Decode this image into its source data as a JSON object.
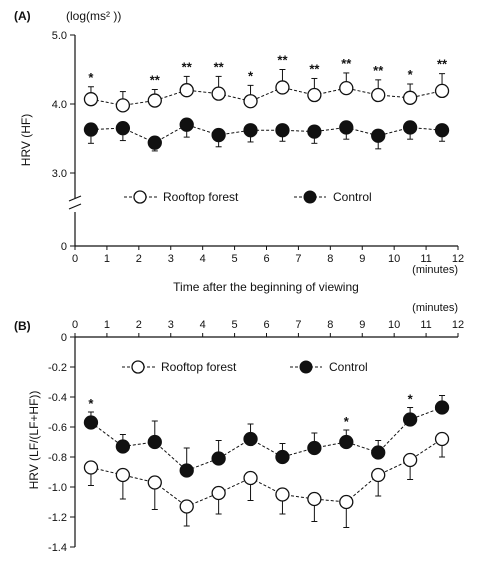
{
  "chart_data": [
    {
      "panel": "(A)",
      "type": "line",
      "unit_label": "(log(ms² ))",
      "ylabel": "HRV (HF)",
      "xlabel": "Time after the beginning of viewing",
      "x_unit": "(minutes)",
      "x_ticks": [
        "0",
        "1",
        "2",
        "3",
        "4",
        "5",
        "6",
        "7",
        "8",
        "9",
        "10",
        "11",
        "12"
      ],
      "y_ticks": [
        "5.0",
        "4.0",
        "3.0",
        "0"
      ],
      "xlim": [
        0,
        12
      ],
      "ylim": [
        3.0,
        5.0
      ],
      "axis_break": true,
      "x": [
        0.5,
        1.5,
        2.5,
        3.5,
        4.5,
        5.5,
        6.5,
        7.5,
        8.5,
        9.5,
        10.5,
        11.5
      ],
      "series": [
        {
          "name": "Rooftop forest",
          "marker": "open-circle",
          "values": [
            4.07,
            3.98,
            4.05,
            4.2,
            4.15,
            4.04,
            4.24,
            4.13,
            4.23,
            4.13,
            4.09,
            4.19
          ],
          "error": [
            0.18,
            0.2,
            0.16,
            0.2,
            0.25,
            0.23,
            0.26,
            0.24,
            0.22,
            0.22,
            0.2,
            0.25
          ]
        },
        {
          "name": "Control",
          "marker": "filled-circle",
          "values": [
            3.63,
            3.65,
            3.44,
            3.7,
            3.55,
            3.62,
            3.62,
            3.6,
            3.66,
            3.54,
            3.66,
            3.62
          ],
          "error": [
            0.2,
            0.18,
            0.12,
            0.18,
            0.17,
            0.17,
            0.16,
            0.17,
            0.17,
            0.19,
            0.17,
            0.16
          ]
        }
      ],
      "significance": [
        "*",
        "",
        "**",
        "**",
        "**",
        "*",
        "**",
        "**",
        "**",
        "**",
        "*",
        "**"
      ],
      "legend_position": "bottom"
    },
    {
      "panel": "(B)",
      "type": "line",
      "ylabel": "HRV (LF/(LF+HF))",
      "x_unit": "(minutes)",
      "x_ticks": [
        "0",
        "1",
        "2",
        "3",
        "4",
        "5",
        "6",
        "7",
        "8",
        "9",
        "10",
        "11",
        "12"
      ],
      "y_ticks": [
        "0",
        "-0.2",
        "-0.4",
        "-0.6",
        "-0.8",
        "-1.0",
        "-1.2",
        "-1.4"
      ],
      "xlim": [
        0,
        12
      ],
      "ylim": [
        -1.4,
        0
      ],
      "x": [
        0.5,
        1.5,
        2.5,
        3.5,
        4.5,
        5.5,
        6.5,
        7.5,
        8.5,
        9.5,
        10.5,
        11.5
      ],
      "series": [
        {
          "name": "Rooftop forest",
          "marker": "open-circle",
          "values": [
            -0.87,
            -0.92,
            -0.97,
            -1.13,
            -1.04,
            -0.94,
            -1.05,
            -1.08,
            -1.1,
            -0.92,
            -0.82,
            -0.68
          ],
          "error": [
            0.12,
            0.16,
            0.18,
            0.13,
            0.14,
            0.15,
            0.13,
            0.15,
            0.17,
            0.14,
            0.13,
            0.12
          ]
        },
        {
          "name": "Control",
          "marker": "filled-circle",
          "values": [
            -0.57,
            -0.73,
            -0.7,
            -0.89,
            -0.81,
            -0.68,
            -0.8,
            -0.74,
            -0.7,
            -0.77,
            -0.55,
            -0.47
          ],
          "error": [
            0.07,
            0.08,
            0.14,
            0.15,
            0.12,
            0.1,
            0.09,
            0.1,
            0.08,
            0.08,
            0.08,
            0.08
          ]
        }
      ],
      "significance": [
        "*",
        "",
        "",
        "",
        "",
        "",
        "",
        "",
        "*",
        "",
        "*",
        ""
      ],
      "legend_position": "top"
    }
  ]
}
